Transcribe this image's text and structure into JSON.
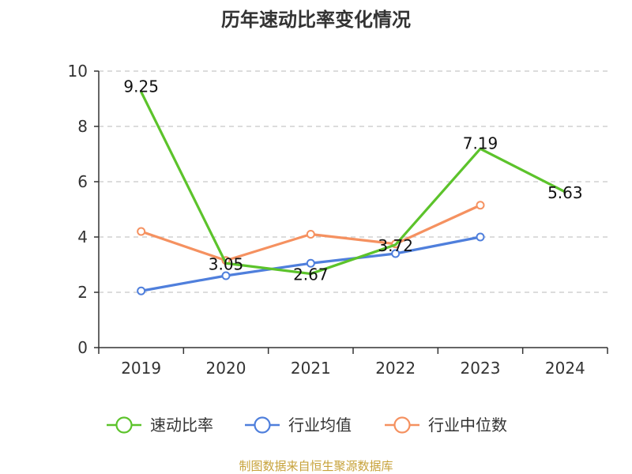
{
  "chart_data": {
    "type": "line",
    "title": "历年速动比率变化情况",
    "categories": [
      "2019",
      "2020",
      "2021",
      "2022",
      "2023",
      "2024"
    ],
    "ylim": [
      0,
      10
    ],
    "yticks": [
      0,
      2,
      4,
      6,
      8,
      10
    ],
    "grid": true,
    "legend_position": "bottom",
    "series": [
      {
        "name": "速动比率",
        "color": "#5cc32b",
        "values": [
          9.25,
          3.05,
          2.67,
          3.72,
          7.19,
          5.63
        ],
        "labels": [
          "9.25",
          "3.05",
          "2.67",
          "3.72",
          "7.19",
          "5.63"
        ]
      },
      {
        "name": "行业均值",
        "color": "#4f7fdc",
        "values": [
          2.05,
          2.6,
          3.05,
          3.4,
          4.0,
          null
        ]
      },
      {
        "name": "行业中位数",
        "color": "#f59160",
        "values": [
          4.2,
          3.15,
          4.1,
          3.75,
          5.15,
          null
        ]
      }
    ]
  },
  "source": {
    "text": "制图数据来自恒生聚源数据库",
    "color": "#c7a23a"
  }
}
